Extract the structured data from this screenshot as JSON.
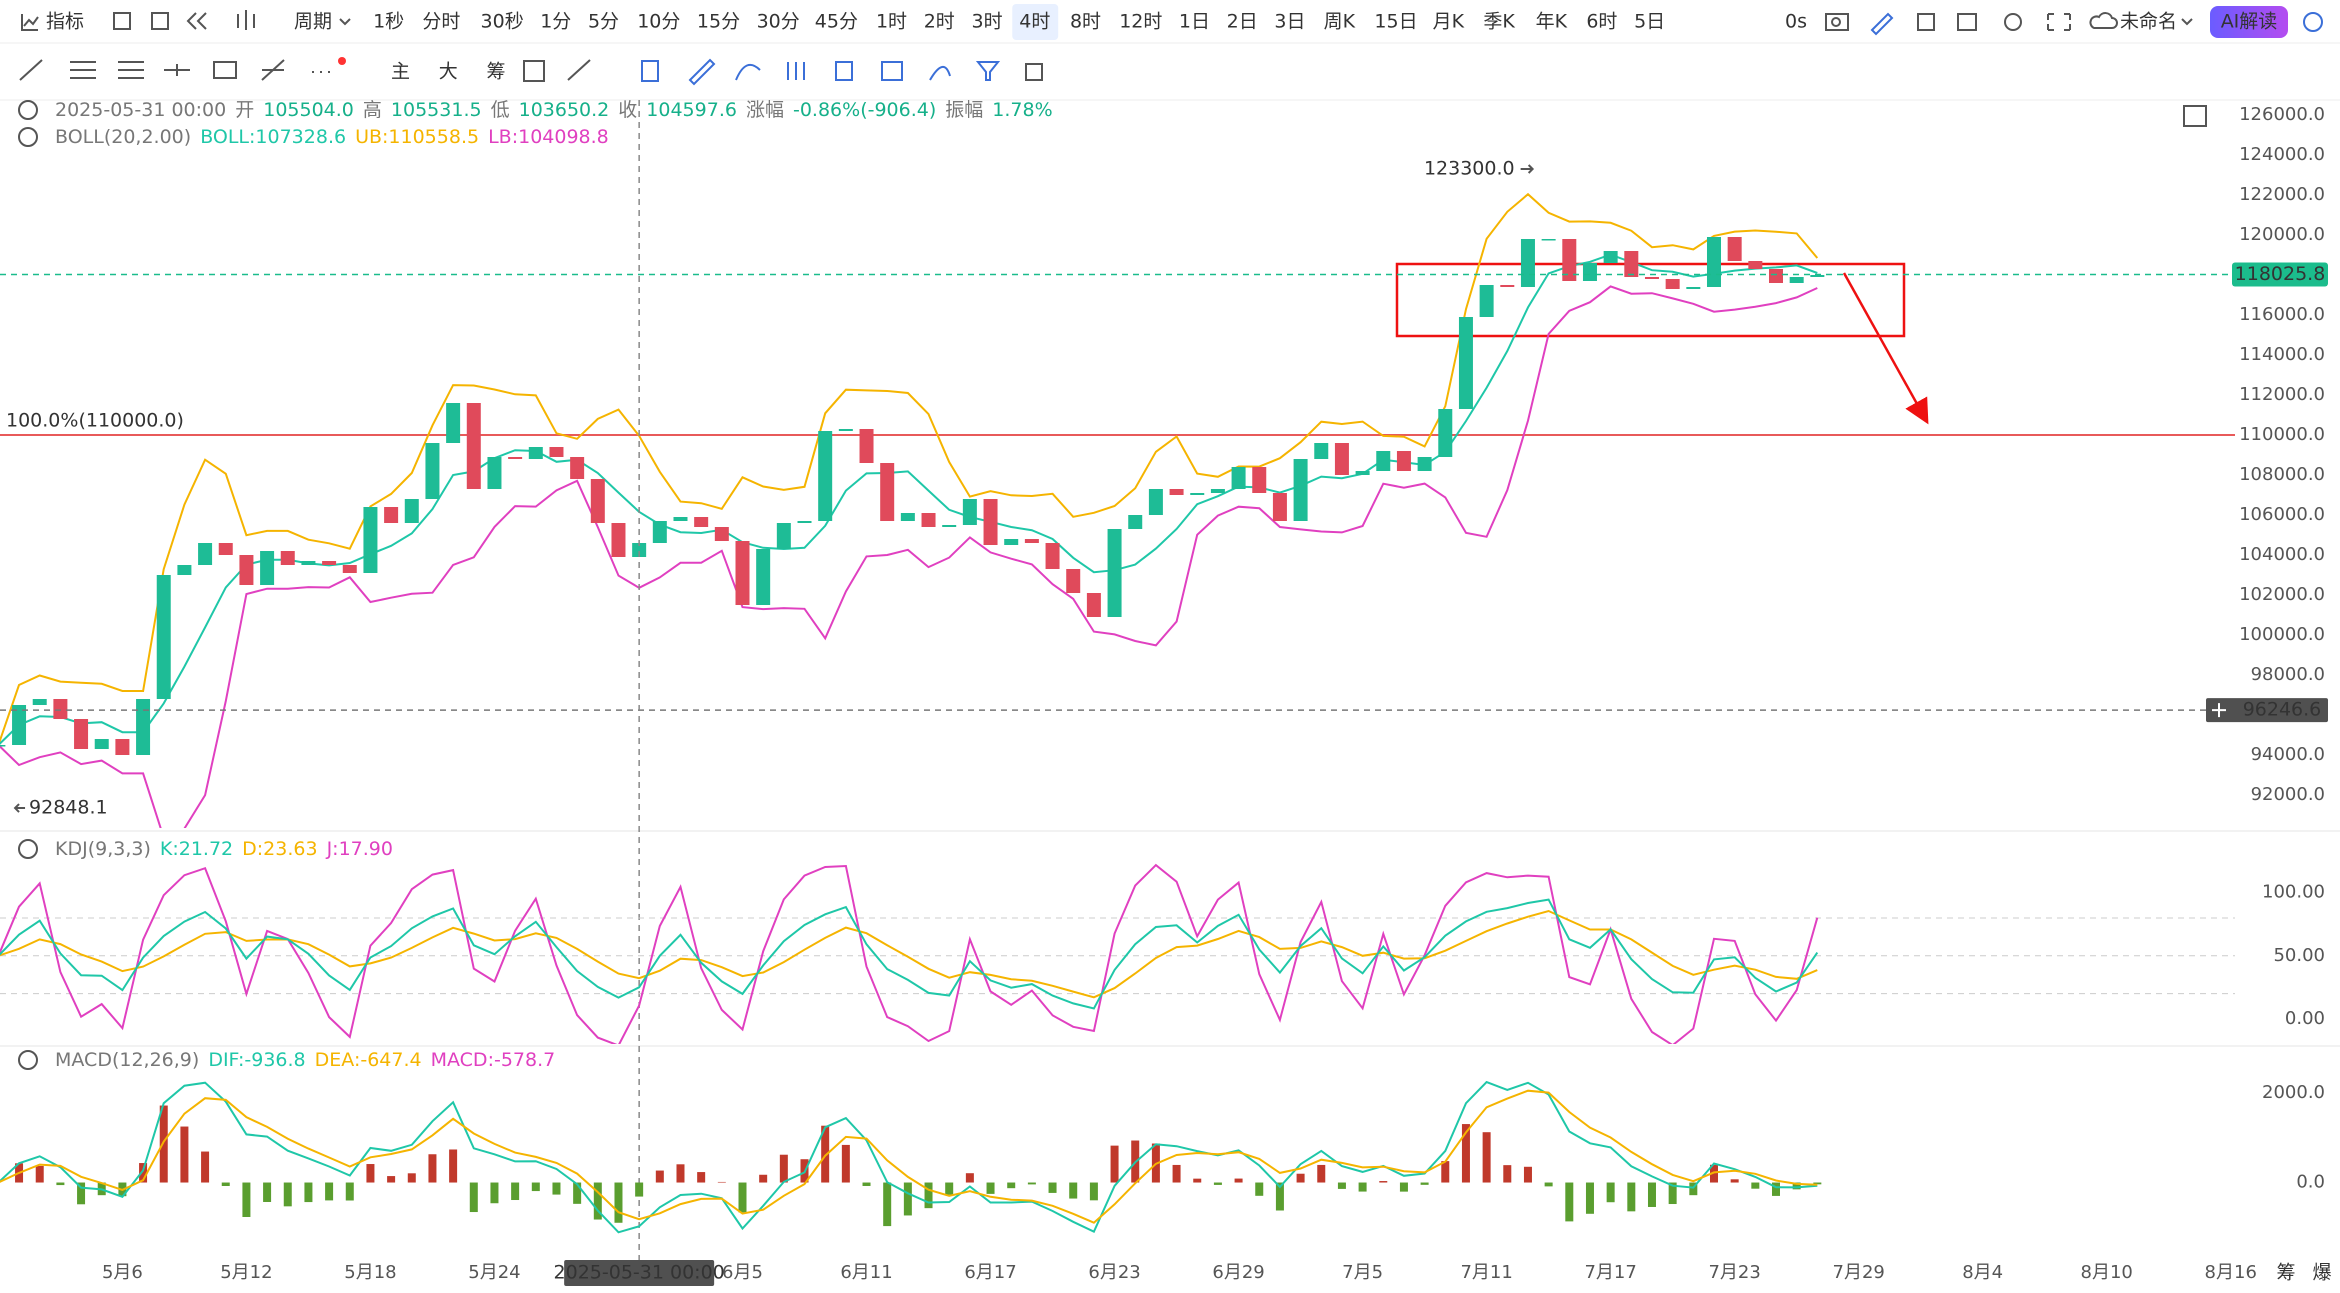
{
  "toolbar": {
    "indicator": "指标",
    "period": "周期",
    "intervals": [
      "1秒",
      "分时",
      "30秒",
      "1分",
      "5分",
      "10分",
      "15分",
      "30分",
      "45分",
      "1时",
      "2时",
      "3时",
      "4时",
      "8时",
      "12时",
      "1日",
      "2日",
      "3日",
      "周K",
      "15日",
      "月K",
      "季K",
      "年K",
      "6时",
      "5日"
    ],
    "active": "4时",
    "countdown": "0s",
    "layout_name": "未命名",
    "ai_button": "AI解读"
  },
  "drawing_toolbar": {
    "labels": [
      "主",
      "大",
      "筹"
    ]
  },
  "header": {
    "datetime": "2025-05-31 00:00",
    "fields": [
      {
        "label": "开",
        "value": "105504.0"
      },
      {
        "label": "高",
        "value": "105531.5"
      },
      {
        "label": "低",
        "value": "103650.2"
      },
      {
        "label": "收",
        "value": "104597.6"
      },
      {
        "label": "涨幅",
        "value": "-0.86%(-906.4)"
      },
      {
        "label": "振幅",
        "value": "1.78%"
      }
    ]
  },
  "boll_header": {
    "name": "BOLL(20,2.00)",
    "mid": "BOLL:107328.6",
    "upper": "UB:110558.5",
    "lower": "LB:104098.8"
  },
  "chart_data": {
    "type": "candlestick",
    "x": [
      "2025-04-30",
      "2025-05-01",
      "2025-05-02",
      "2025-05-03",
      "2025-05-04",
      "2025-05-05",
      "2025-05-06",
      "2025-05-07",
      "2025-05-08",
      "2025-05-09",
      "2025-05-10",
      "2025-05-11",
      "2025-05-12",
      "2025-05-13",
      "2025-05-14",
      "2025-05-15",
      "2025-05-16",
      "2025-05-17",
      "2025-05-18",
      "2025-05-19",
      "2025-05-20",
      "2025-05-21",
      "2025-05-22",
      "2025-05-23",
      "2025-05-24",
      "2025-05-25",
      "2025-05-26",
      "2025-05-27",
      "2025-05-28",
      "2025-05-29",
      "2025-05-30",
      "2025-05-31",
      "2025-06-01",
      "2025-06-02",
      "2025-06-03",
      "2025-06-04",
      "2025-06-05",
      "2025-06-06",
      "2025-06-07",
      "2025-06-08",
      "2025-06-09",
      "2025-06-10",
      "2025-06-11",
      "2025-06-12",
      "2025-06-13",
      "2025-06-14",
      "2025-06-15",
      "2025-06-16",
      "2025-06-17",
      "2025-06-18",
      "2025-06-19",
      "2025-06-20",
      "2025-06-21",
      "2025-06-22",
      "2025-06-23",
      "2025-06-24",
      "2025-06-25",
      "2025-06-26",
      "2025-06-27",
      "2025-06-28",
      "2025-06-29",
      "2025-06-30",
      "2025-07-01",
      "2025-07-02",
      "2025-07-03",
      "2025-07-04",
      "2025-07-05",
      "2025-07-06",
      "2025-07-07",
      "2025-07-08",
      "2025-07-09",
      "2025-07-10",
      "2025-07-11",
      "2025-07-12",
      "2025-07-13",
      "2025-07-14",
      "2025-07-15",
      "2025-07-16",
      "2025-07-17",
      "2025-07-18",
      "2025-07-19",
      "2025-07-20",
      "2025-07-21",
      "2025-07-22",
      "2025-07-23",
      "2025-07-24",
      "2025-07-25",
      "2025-07-26",
      "2025-07-27"
    ],
    "close": [
      94500,
      96500,
      96800,
      95800,
      94300,
      94800,
      94000,
      96800,
      103000,
      103500,
      104600,
      104000,
      102500,
      104200,
      103500,
      103700,
      103500,
      103100,
      106400,
      105600,
      106800,
      109600,
      111600,
      107300,
      108900,
      108800,
      109400,
      108900,
      107800,
      105600,
      103900,
      104600,
      105700,
      105900,
      105400,
      104700,
      101500,
      104300,
      105600,
      105700,
      110200,
      110300,
      108600,
      105700,
      106100,
      105400,
      105500,
      106800,
      104500,
      104800,
      104600,
      103300,
      102100,
      100900,
      105300,
      106000,
      107300,
      107000,
      107100,
      107300,
      108400,
      107100,
      105700,
      108800,
      109600,
      108000,
      108200,
      109200,
      108200,
      108900,
      111300,
      115900,
      117500,
      117400,
      119800,
      119800,
      117700,
      118600,
      119200,
      117900,
      117800,
      117300,
      117400,
      119900,
      118700,
      118300,
      117600,
      117900,
      118000
    ],
    "up_color": "#1ebc96",
    "down_color": "#e04a5b",
    "ylim": [
      90350,
      126750
    ],
    "yticks": [
      {
        "value": 126000,
        "label": "126000.0"
      },
      {
        "value": 124000,
        "label": "124000.0"
      },
      {
        "value": 122000,
        "label": "122000.0"
      },
      {
        "value": 120000,
        "label": "120000.0"
      },
      {
        "value": 118000,
        "label": "118000.0"
      },
      {
        "value": 116000,
        "label": "116000.0"
      },
      {
        "value": 114000,
        "label": "114000.0"
      },
      {
        "value": 112000,
        "label": "112000.0"
      },
      {
        "value": 110000,
        "label": "110000.0"
      },
      {
        "value": 108000,
        "label": "108000.0"
      },
      {
        "value": 106000,
        "label": "106000.0"
      },
      {
        "value": 104000,
        "label": "104000.0"
      },
      {
        "value": 102000,
        "label": "102000.0"
      },
      {
        "value": 100000,
        "label": "100000.0"
      },
      {
        "value": 98000,
        "label": "98000.0"
      },
      {
        "value": 96000,
        "label": "96000.0"
      },
      {
        "value": 94000,
        "label": "94000.0"
      },
      {
        "value": 92000,
        "label": "92000.0"
      }
    ],
    "xticks": [
      {
        "value": "2025-05-06",
        "label": "5月6"
      },
      {
        "value": "2025-05-12",
        "label": "5月12"
      },
      {
        "value": "2025-05-18",
        "label": "5月18"
      },
      {
        "value": "2025-05-24",
        "label": "5月24"
      },
      {
        "value": "2025-06-05",
        "label": "6月5"
      },
      {
        "value": "2025-06-11",
        "label": "6月11"
      },
      {
        "value": "2025-06-17",
        "label": "6月17"
      },
      {
        "value": "2025-06-23",
        "label": "6月23"
      },
      {
        "value": "2025-06-29",
        "label": "6月29"
      },
      {
        "value": "2025-07-05",
        "label": "7月5"
      },
      {
        "value": "2025-07-11",
        "label": "7月11"
      },
      {
        "value": "2025-07-17",
        "label": "7月17"
      },
      {
        "value": "2025-07-23",
        "label": "7月23"
      },
      {
        "value": "2025-07-29",
        "label": "7月29"
      },
      {
        "value": "2025-08-04",
        "label": "8月4"
      },
      {
        "value": "2025-08-10",
        "label": "8月10"
      },
      {
        "value": "2025-08-16",
        "label": "8月16"
      }
    ],
    "high_mark": {
      "value": 123300,
      "label": "123300.0",
      "date": "2025-07-14"
    },
    "low_mark": {
      "value": 92848.1,
      "label": "92848.1",
      "date": "2025-05-01"
    },
    "level": {
      "value": 110000,
      "label": "100.0%(110000.0)",
      "color": "#e85a5a"
    },
    "last_price": {
      "value": 118025.8,
      "label": "118025.8",
      "color": "#1bbc8c"
    },
    "crosshair": {
      "value": 96246.6,
      "label": "96246.6",
      "date": "2025-05-31",
      "date_label": "2025-05-31 00:00"
    }
  },
  "kdj": {
    "type": "line",
    "title": "KDJ(9,3,3)",
    "k": "K:21.72",
    "d": "D:23.63",
    "j": "J:17.90",
    "ylim": [
      -20,
      145
    ],
    "yticks": [
      {
        "value": 100,
        "label": "100.00"
      },
      {
        "value": 50,
        "label": "50.00"
      },
      {
        "value": 0,
        "label": "0.00"
      }
    ],
    "levels": [
      20,
      50,
      80
    ]
  },
  "macd": {
    "type": "bar",
    "title": "MACD(12,26,9)",
    "dif": "DIF:-936.8",
    "dea": "DEA:-647.4",
    "hist": "MACD:-578.7",
    "ylim": [
      -1750,
      3000
    ],
    "yticks": [
      {
        "value": 2000,
        "label": "2000.0"
      },
      {
        "value": 0,
        "label": "0.0"
      }
    ]
  },
  "footer": [
    "筹",
    "爆"
  ]
}
